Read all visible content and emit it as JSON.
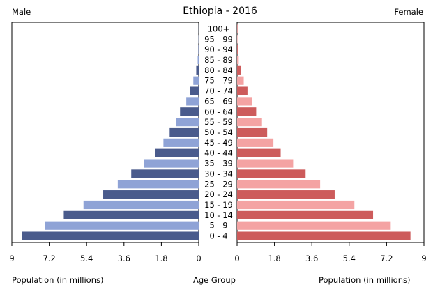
{
  "header": {
    "title": "Ethiopia - 2016",
    "left_label": "Male",
    "right_label": "Female"
  },
  "footer": {
    "left_axis_label": "Population (in millions)",
    "center_label": "Age Group",
    "right_axis_label": "Population (in millions)"
  },
  "colors": {
    "male_dark": "#4a5b8c",
    "male_light": "#8fa3d6",
    "female_dark": "#cd5b5b",
    "female_light": "#f4a3a3"
  },
  "chart_data": {
    "type": "bar",
    "orientation": "horizontal-population-pyramid",
    "title": "Ethiopia - 2016",
    "categories": [
      "0 - 4",
      "5 - 9",
      "10 - 14",
      "15 - 19",
      "20 - 24",
      "25 - 29",
      "30 - 34",
      "35 - 39",
      "40 - 44",
      "45 - 49",
      "50 - 54",
      "55 - 59",
      "60 - 64",
      "65 - 69",
      "70 - 74",
      "75 - 79",
      "80 - 84",
      "85 - 89",
      "90 - 94",
      "95 - 99",
      "100+"
    ],
    "series": [
      {
        "name": "Male",
        "values": [
          8.5,
          7.4,
          6.5,
          5.55,
          4.6,
          3.9,
          3.25,
          2.65,
          2.1,
          1.7,
          1.4,
          1.1,
          0.9,
          0.6,
          0.42,
          0.26,
          0.12,
          0.05,
          0.02,
          0.01,
          0.005
        ]
      },
      {
        "name": "Female",
        "values": [
          8.35,
          7.4,
          6.55,
          5.65,
          4.7,
          4.0,
          3.3,
          2.7,
          2.1,
          1.75,
          1.45,
          1.2,
          0.92,
          0.72,
          0.5,
          0.32,
          0.18,
          0.08,
          0.03,
          0.01,
          0.005
        ]
      }
    ],
    "xlim": [
      0,
      9
    ],
    "xticks_left": [
      "9",
      "7.2",
      "5.4",
      "3.6",
      "1.8",
      "0"
    ],
    "xticks_right": [
      "0",
      "1.8",
      "3.6",
      "5.4",
      "7.2",
      "9"
    ],
    "xlabel": "Population (in millions)",
    "ylabel": "Age Group",
    "grid": false
  }
}
